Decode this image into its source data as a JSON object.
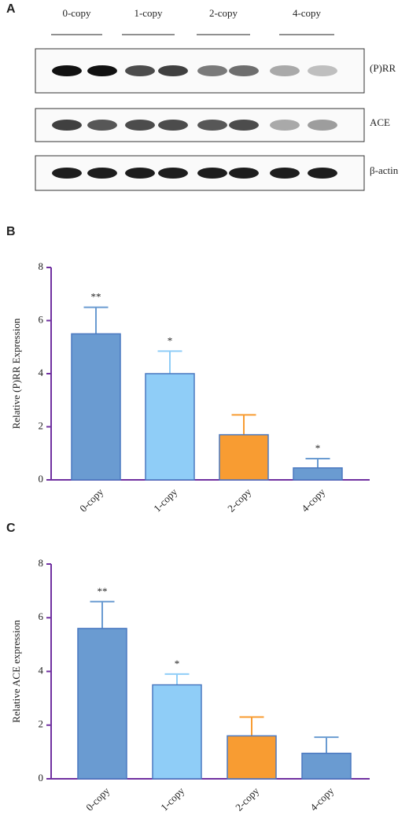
{
  "panel_a": {
    "label": "A",
    "lanes": [
      "0-copy",
      "1-copy",
      "2-copy",
      "4-copy"
    ],
    "rows": [
      "(P)RR",
      "ACE",
      "β-actin"
    ]
  },
  "chart_data": [
    {
      "type": "bar",
      "panel_label": "B",
      "ylabel": "Relative (P)RR Expression",
      "categories": [
        "0-copy",
        "1-copy",
        "2-copy",
        "4-copy"
      ],
      "values": [
        5.5,
        4.0,
        1.7,
        0.45
      ],
      "errors": [
        1.0,
        0.85,
        0.75,
        0.35
      ],
      "annotations": [
        "**",
        "*",
        null,
        "*"
      ],
      "colors": [
        "#6a9bd1",
        "#8fcdf7",
        "#f89c32",
        "#6a9bd1"
      ],
      "ylim": [
        0,
        8
      ],
      "yticks": [
        0,
        2,
        4,
        6,
        8
      ]
    },
    {
      "type": "bar",
      "panel_label": "C",
      "ylabel": "Relative ACE expression",
      "categories": [
        "0-copy",
        "1-copy",
        "2-copy",
        "4-copy"
      ],
      "values": [
        5.6,
        3.5,
        1.6,
        0.95
      ],
      "errors": [
        1.0,
        0.4,
        0.7,
        0.6
      ],
      "annotations": [
        "**",
        "*",
        null,
        null
      ],
      "colors": [
        "#6a9bd1",
        "#8fcdf7",
        "#f89c32",
        "#6a9bd1"
      ],
      "ylim": [
        0,
        8
      ],
      "yticks": [
        0,
        2,
        4,
        6,
        8
      ]
    }
  ]
}
